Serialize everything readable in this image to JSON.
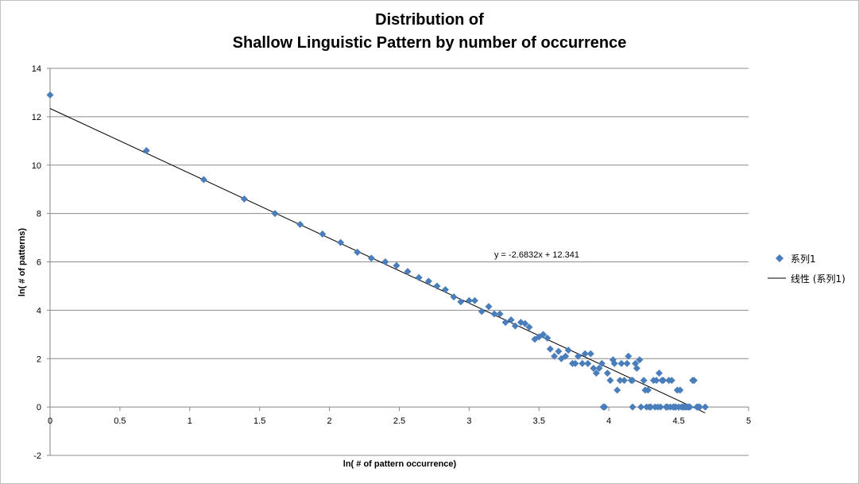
{
  "chart_data": {
    "type": "scatter",
    "title_line1": "Distribution of",
    "title_line2": "Shallow Linguistic Pattern by number of occurrence",
    "xlabel": "ln( # of pattern occurrence)",
    "ylabel": "ln( # of patterns)",
    "xlim": [
      0,
      5
    ],
    "ylim": [
      -2,
      14
    ],
    "xticks": [
      "0",
      "0.5",
      "1",
      "1.5",
      "2",
      "2.5",
      "3",
      "3.5",
      "4",
      "4.5",
      "5"
    ],
    "yticks": [
      "-2",
      "0",
      "2",
      "4",
      "6",
      "8",
      "10",
      "12",
      "14"
    ],
    "grid": "horizontal",
    "legend_position": "right",
    "series": [
      {
        "name": "系列1",
        "marker": "diamond",
        "color": "#4a7ebb",
        "x": [
          0.0,
          0.69,
          1.1,
          1.39,
          1.61,
          1.79,
          1.95,
          2.08,
          2.2,
          2.3,
          2.4,
          2.48,
          2.56,
          2.64,
          2.71,
          2.77,
          2.83,
          2.89,
          2.94,
          3.0,
          3.04,
          3.09,
          3.14,
          3.18,
          3.22,
          3.26,
          3.3,
          3.33,
          3.37,
          3.4,
          3.43,
          3.47,
          3.5,
          3.53,
          3.56,
          3.58,
          3.61,
          3.64,
          3.66,
          3.69,
          3.71,
          3.74,
          3.76,
          3.78,
          3.81,
          3.83,
          3.85,
          3.87,
          3.89,
          3.91,
          3.93,
          3.95,
          3.97,
          3.99,
          4.01,
          4.03,
          4.04,
          4.06,
          4.08,
          4.09,
          4.11,
          4.13,
          4.14,
          4.16,
          4.17,
          4.19,
          4.2,
          4.22,
          4.23,
          4.25,
          4.26,
          4.28,
          4.29,
          4.3,
          4.32,
          4.33,
          4.34,
          4.36,
          4.37,
          4.38,
          4.39,
          4.41,
          4.42,
          4.43,
          4.44,
          4.45,
          4.47,
          4.48,
          4.49,
          4.5,
          4.51,
          4.52,
          4.53,
          4.54,
          4.55,
          4.56,
          4.57,
          4.58,
          4.6,
          4.61,
          4.63,
          4.64,
          4.65,
          4.69,
          3.96,
          4.17,
          4.27,
          4.35,
          4.41,
          4.46
        ],
        "y": [
          12.9,
          10.6,
          9.4,
          8.6,
          8.0,
          7.55,
          7.15,
          6.8,
          6.4,
          6.15,
          6.0,
          5.85,
          5.6,
          5.35,
          5.2,
          5.0,
          4.85,
          4.55,
          4.35,
          4.4,
          4.4,
          3.95,
          4.15,
          3.85,
          3.85,
          3.5,
          3.6,
          3.35,
          3.5,
          3.45,
          3.3,
          2.8,
          2.9,
          3.0,
          2.85,
          2.4,
          2.1,
          2.3,
          2.0,
          2.1,
          2.35,
          1.8,
          1.8,
          2.1,
          1.8,
          2.2,
          1.8,
          2.2,
          1.6,
          1.4,
          1.6,
          1.8,
          0.0,
          1.4,
          1.1,
          1.95,
          1.8,
          0.7,
          1.1,
          1.8,
          1.1,
          1.8,
          2.1,
          1.1,
          1.1,
          1.8,
          1.6,
          1.95,
          0.0,
          1.1,
          0.7,
          0.7,
          0.0,
          0.0,
          1.1,
          0.0,
          1.1,
          1.4,
          0.0,
          1.1,
          1.1,
          0.0,
          0.0,
          1.1,
          0.0,
          1.1,
          0.0,
          0.0,
          0.7,
          0.0,
          0.7,
          0.0,
          0.0,
          0.0,
          0.0,
          0.0,
          0.0,
          0.0,
          1.1,
          1.1,
          0.0,
          0.0,
          0.0,
          0.0,
          0.0,
          0.0,
          0.0,
          0.0,
          0.0,
          0.0
        ]
      }
    ],
    "trendline": {
      "name": "线性 (系列1)",
      "slope": -2.6832,
      "intercept": 12.341,
      "x_range": [
        0,
        4.69
      ],
      "equation_label": "y = -2.6832x + 12.341",
      "color": "#000000"
    }
  }
}
